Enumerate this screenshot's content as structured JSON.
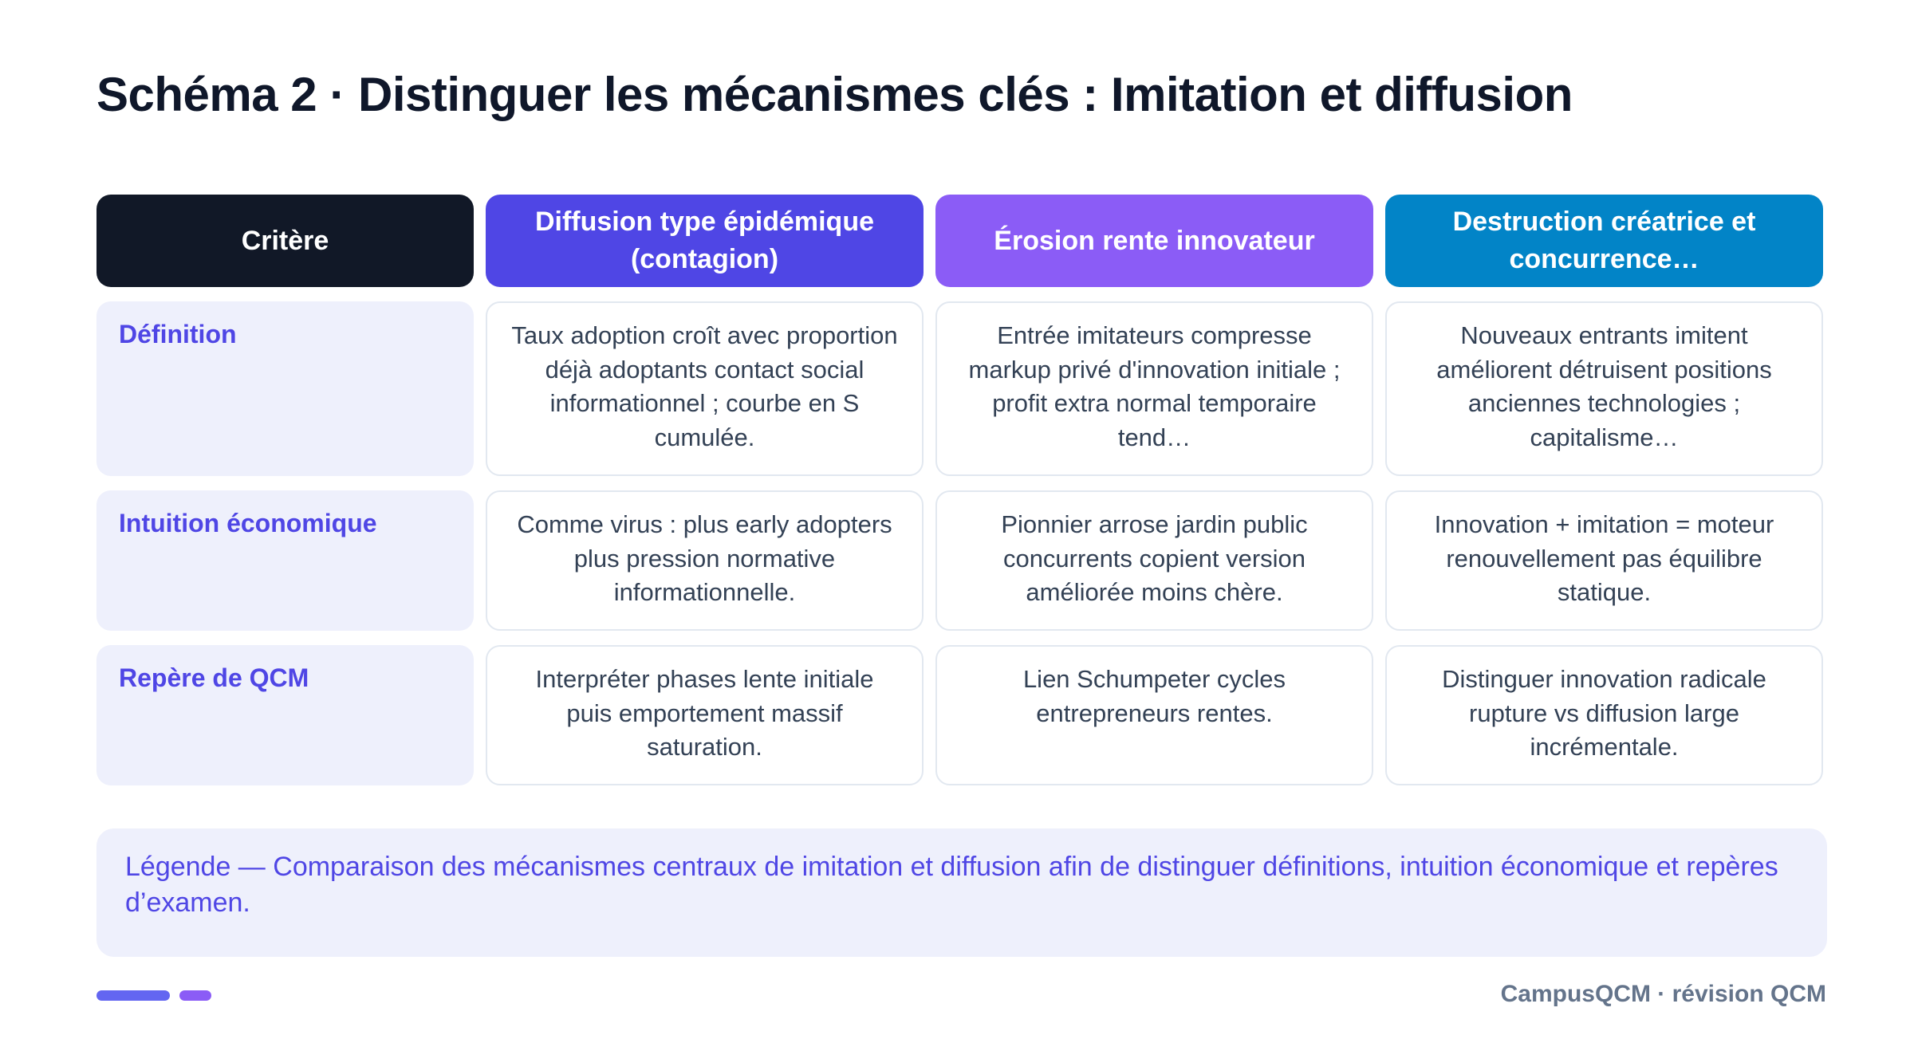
{
  "title": "Schéma 2 · Distinguer les mécanismes clés : Imitation et diffusion",
  "table": {
    "header": {
      "criterion": "Critère",
      "columns": [
        "Diffusion type épidémique (contagion)",
        "Érosion rente innovateur",
        "Destruction créatrice et concurrence…"
      ]
    },
    "rows": [
      {
        "label": "Définition",
        "cells": [
          "Taux adoption croît avec proportion déjà adoptants contact social informationnel ; courbe en S cumulée.",
          "Entrée imitateurs compresse markup privé d'innovation initiale ; profit extra normal temporaire tend…",
          "Nouveaux entrants imitent améliorent détruisent positions anciennes technologies ; capitalisme…"
        ]
      },
      {
        "label": "Intuition économique",
        "cells": [
          "Comme virus : plus early adopters plus pression normative informationnelle.",
          "Pionnier arrose jardin public concurrents copient version améliorée moins chère.",
          "Innovation + imitation = moteur renouvellement pas équilibre statique."
        ]
      },
      {
        "label": "Repère de QCM",
        "cells": [
          "Interpréter phases lente initiale puis emportement massif saturation.",
          "Lien Schumpeter cycles entrepreneurs rentes.",
          "Distinguer innovation radicale rupture vs diffusion large incrémentale."
        ]
      }
    ]
  },
  "legend": {
    "prefix": "Légende — ",
    "text": "Comparaison des mécanismes centraux de imitation et diffusion afin de distinguer définitions, intuition économique et repères d’examen."
  },
  "footer": "CampusQCM · révision QCM",
  "colors": {
    "criterion_header": "#111827",
    "column_1_header": "#4f46e5",
    "column_2_header": "#8b5cf6",
    "column_3_header": "#0284c7",
    "row_label_bg": "#eef0fc",
    "row_label_text": "#4f46e5"
  }
}
